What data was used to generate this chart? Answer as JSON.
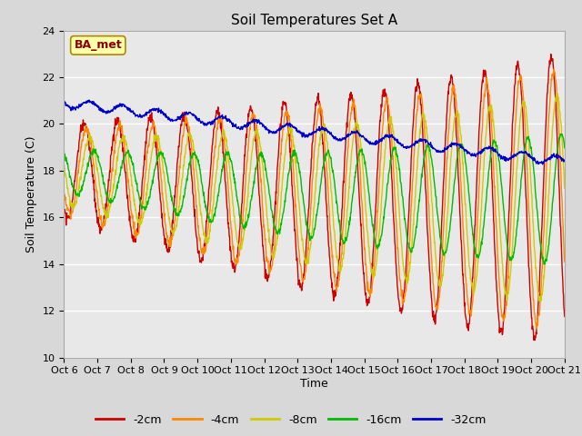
{
  "title": "Soil Temperatures Set A",
  "xlabel": "Time",
  "ylabel": "Soil Temperature (C)",
  "annotation": "BA_met",
  "ylim": [
    10,
    24
  ],
  "xtick_labels": [
    "Oct 6",
    "Oct 7",
    "Oct 8",
    "Oct 9",
    "Oct 10",
    "Oct 11",
    "Oct 12",
    "Oct 13",
    "Oct 14",
    "Oct 15",
    "Oct 16",
    "Oct 17",
    "Oct 18",
    "Oct 19",
    "Oct 20",
    "Oct 21"
  ],
  "line_colors": {
    "-2cm": "#cc0000",
    "-4cm": "#ff8800",
    "-8cm": "#cccc00",
    "-16cm": "#00bb00",
    "-32cm": "#0000cc"
  },
  "background_color": "#d8d8d8",
  "plot_bg_color": "#e8e8e8",
  "title_fontsize": 11,
  "axis_fontsize": 9,
  "tick_fontsize": 8,
  "n_days": 15,
  "points_per_day": 96
}
